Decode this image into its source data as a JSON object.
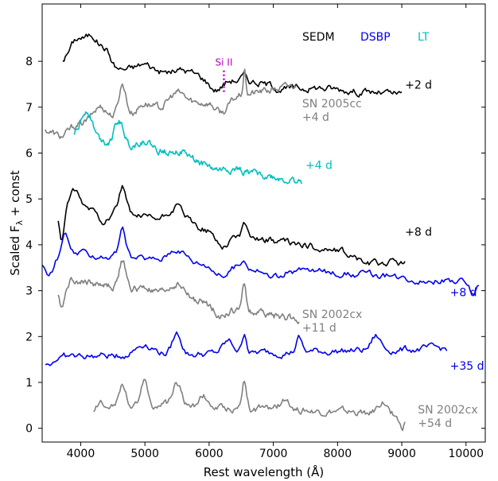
{
  "chart_data": {
    "type": "line",
    "xlabel": "Rest wavelength (Å)",
    "ylabel_main": "Scaled F",
    "ylabel_sub": "λ",
    "ylabel_tail": " + const",
    "xlim": [
      3400,
      10300
    ],
    "ylim": [
      -0.3,
      9.25
    ],
    "grid": false,
    "x_ticks": [
      4000,
      5000,
      6000,
      7000,
      8000,
      9000,
      10000
    ],
    "y_ticks": [
      0,
      1,
      2,
      3,
      4,
      5,
      6,
      7,
      8
    ],
    "legend": [
      {
        "label": "SEDM",
        "color": "#000000"
      },
      {
        "label": "DSBP",
        "color": "#0000ee"
      },
      {
        "label": "LT",
        "color": "#00bfbf"
      }
    ],
    "annotation": {
      "label": "Si II",
      "x": 6230,
      "y_top": 7.8,
      "y_bottom": 7.3,
      "color": "#bf00bf"
    },
    "series": [
      {
        "key": "s_sedm_2",
        "label": "+2 d",
        "color": "#000000",
        "x_start": 3720,
        "x_end": 9000,
        "base": 7.95,
        "slope": -0.13,
        "features": [
          [
            3950,
            0.55,
            170
          ],
          [
            4200,
            0.6,
            150
          ],
          [
            4400,
            0.3,
            100
          ],
          [
            5000,
            0.15,
            180
          ],
          [
            5600,
            0.1,
            200
          ],
          [
            6100,
            -0.25,
            150
          ],
          [
            6550,
            0.1,
            60
          ],
          [
            7200,
            -0.1,
            300
          ]
        ]
      },
      {
        "key": "s_05cc",
        "label": "SN 2005cc",
        "label2": "+4 d",
        "color": "#808080",
        "x_start": 3450,
        "x_end": 7350,
        "base": 6.5,
        "slope": 0.25,
        "features": [
          [
            3700,
            -0.2,
            150
          ],
          [
            4300,
            0.3,
            150
          ],
          [
            4650,
            0.7,
            80
          ],
          [
            5000,
            0.2,
            150
          ],
          [
            5500,
            0.3,
            180
          ],
          [
            6550,
            0.5,
            30
          ],
          [
            6200,
            -0.3,
            150
          ]
        ]
      },
      {
        "key": "s_lt_4",
        "label": "+4 d",
        "color": "#00bfbf",
        "x_start": 3900,
        "x_end": 7450,
        "base": 6.4,
        "slope": -0.3,
        "features": [
          [
            4100,
            0.6,
            120
          ],
          [
            4600,
            0.5,
            100
          ],
          [
            5000,
            0.2,
            150
          ],
          [
            5500,
            0.15,
            200
          ],
          [
            6100,
            -0.1,
            200
          ]
        ]
      },
      {
        "key": "s_sedm_8",
        "label": "+8 d",
        "color": "#000000",
        "x_start": 3650,
        "x_end": 9050,
        "base": 4.9,
        "slope": -0.24,
        "features": [
          [
            3700,
            -0.8,
            60
          ],
          [
            3900,
            0.3,
            100
          ],
          [
            4650,
            0.6,
            80
          ],
          [
            4350,
            -0.2,
            100
          ],
          [
            5500,
            0.35,
            180
          ],
          [
            6550,
            0.3,
            40
          ],
          [
            6200,
            -0.3,
            150
          ],
          [
            8500,
            -0.15,
            250
          ]
        ]
      },
      {
        "key": "s_dsbp_8",
        "label": "+8 d",
        "color": "#0000ee",
        "x_start": 3400,
        "x_end": 10200,
        "base": 3.85,
        "slope": -0.1,
        "features": [
          [
            3500,
            -0.5,
            120
          ],
          [
            3750,
            0.4,
            60
          ],
          [
            4650,
            0.6,
            70
          ],
          [
            5500,
            0.3,
            180
          ],
          [
            6200,
            -0.25,
            150
          ],
          [
            6550,
            0.15,
            50
          ],
          [
            7000,
            -0.2,
            200
          ],
          [
            10100,
            -0.25,
            80
          ]
        ]
      },
      {
        "key": "s_02cx_11",
        "label": "SN 2002cx",
        "label2": "+11 d",
        "color": "#808080",
        "x_start": 3650,
        "x_end": 7400,
        "base": 3.3,
        "slope": -0.25,
        "features": [
          [
            3700,
            -0.6,
            80
          ],
          [
            4650,
            0.6,
            70
          ],
          [
            5000,
            0.1,
            150
          ],
          [
            5500,
            0.3,
            180
          ],
          [
            6550,
            0.6,
            40
          ],
          [
            6200,
            -0.2,
            150
          ]
        ]
      },
      {
        "key": "s_dsbp_35",
        "label": "+35 d",
        "color": "#0000ee",
        "x_start": 3450,
        "x_end": 9700,
        "base": 1.55,
        "slope": 0.03,
        "features": [
          [
            3500,
            -0.15,
            100
          ],
          [
            5000,
            0.25,
            200
          ],
          [
            5500,
            0.45,
            100
          ],
          [
            6300,
            0.25,
            120
          ],
          [
            6550,
            0.45,
            50
          ],
          [
            7000,
            0.0,
            200
          ],
          [
            7400,
            0.3,
            60
          ],
          [
            8600,
            0.3,
            100
          ]
        ]
      },
      {
        "key": "s_02cx_54",
        "label": "SN 2002cx",
        "label2": "+54 d",
        "color": "#808080",
        "x_start": 4200,
        "x_end": 9050,
        "base": 0.55,
        "slope": -0.05,
        "features": [
          [
            4200,
            -0.2,
            60
          ],
          [
            4650,
            0.4,
            80
          ],
          [
            5000,
            0.6,
            60
          ],
          [
            5500,
            0.5,
            100
          ],
          [
            5900,
            0.3,
            80
          ],
          [
            6550,
            0.65,
            50
          ],
          [
            7200,
            0.2,
            120
          ],
          [
            8700,
            0.25,
            100
          ],
          [
            9000,
            -0.3,
            60
          ]
        ]
      }
    ]
  }
}
